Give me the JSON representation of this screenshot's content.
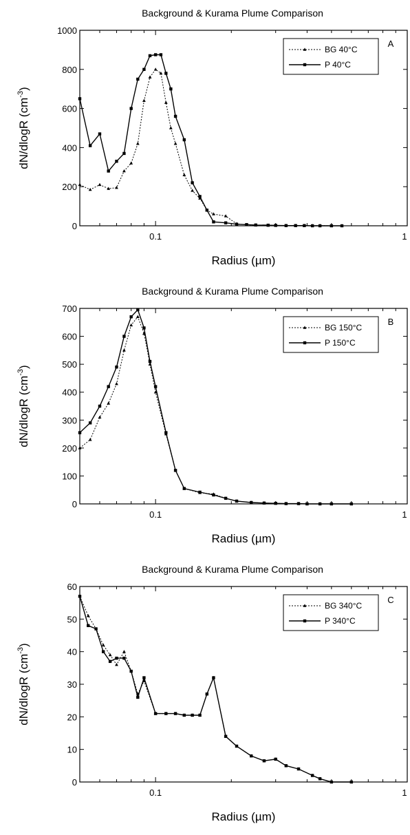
{
  "chart_data": [
    {
      "type": "line",
      "panel": "A",
      "title": "Background & Kurama Plume Comparison",
      "xlabel": "Radius (µm)",
      "ylabel": "dN/dlogR (cm-3)",
      "ylabel_main": "dN/dlogR (cm",
      "ylabel_sup": "-3",
      "ylabel_close": ")",
      "xscale": "log",
      "xlim": [
        0.05,
        1
      ],
      "ylim": [
        0,
        1000
      ],
      "xticks": [
        0.1,
        1
      ],
      "xtick_labels": [
        "0.1",
        "1"
      ],
      "yticks": [
        0,
        200,
        400,
        600,
        800,
        1000
      ],
      "ytick_labels": [
        "0",
        "200",
        "400",
        "600",
        "800",
        "1000"
      ],
      "legend_position": "top-right",
      "series": [
        {
          "name": "BG 40°C",
          "style": "dotted",
          "marker": "triangle",
          "x": [
            0.05,
            0.055,
            0.06,
            0.065,
            0.07,
            0.075,
            0.08,
            0.085,
            0.09,
            0.095,
            0.1,
            0.105,
            0.11,
            0.115,
            0.12,
            0.13,
            0.14,
            0.15,
            0.16,
            0.17,
            0.19,
            0.21,
            0.23,
            0.25,
            0.28,
            0.3,
            0.33,
            0.36,
            0.39,
            0.42,
            0.45,
            0.5,
            0.55
          ],
          "y": [
            210,
            185,
            210,
            190,
            195,
            280,
            320,
            420,
            640,
            760,
            800,
            780,
            630,
            500,
            420,
            260,
            180,
            140,
            80,
            60,
            50,
            10,
            5,
            3,
            2,
            2,
            1,
            1,
            1,
            1,
            1,
            0,
            0
          ]
        },
        {
          "name": "P 40°C",
          "style": "solid",
          "marker": "square",
          "x": [
            0.05,
            0.055,
            0.06,
            0.065,
            0.07,
            0.075,
            0.08,
            0.085,
            0.09,
            0.095,
            0.1,
            0.105,
            0.11,
            0.115,
            0.12,
            0.13,
            0.14,
            0.15,
            0.16,
            0.17,
            0.19,
            0.21,
            0.23,
            0.25,
            0.28,
            0.3,
            0.33,
            0.36,
            0.39,
            0.42,
            0.45,
            0.5,
            0.55
          ],
          "y": [
            650,
            410,
            470,
            280,
            330,
            370,
            600,
            750,
            800,
            870,
            875,
            875,
            780,
            700,
            560,
            440,
            220,
            150,
            80,
            20,
            15,
            8,
            6,
            4,
            3,
            2,
            1,
            1,
            1,
            0,
            0,
            0,
            0
          ]
        }
      ]
    },
    {
      "type": "line",
      "panel": "B",
      "title": "Background & Kurama Plume Comparison",
      "xlabel": "Radius (µm)",
      "ylabel": "dN/dlogR (cm-3)",
      "ylabel_main": "dN/dlogR (cm",
      "ylabel_sup": "-3",
      "ylabel_close": ")",
      "xscale": "log",
      "xlim": [
        0.05,
        1
      ],
      "ylim": [
        0,
        700
      ],
      "xticks": [
        0.1,
        1
      ],
      "xtick_labels": [
        "0.1",
        "1"
      ],
      "yticks": [
        0,
        100,
        200,
        300,
        400,
        500,
        600,
        700
      ],
      "ytick_labels": [
        "0",
        "100",
        "200",
        "300",
        "400",
        "500",
        "600",
        "700"
      ],
      "legend_position": "top-right",
      "series": [
        {
          "name": "BG 150°C",
          "style": "dotted",
          "marker": "triangle",
          "x": [
            0.05,
            0.055,
            0.06,
            0.065,
            0.07,
            0.075,
            0.08,
            0.085,
            0.09,
            0.095,
            0.1,
            0.11,
            0.12,
            0.13,
            0.15,
            0.17,
            0.19,
            0.21,
            0.24,
            0.27,
            0.3,
            0.33,
            0.37,
            0.4,
            0.45,
            0.5,
            0.6
          ],
          "y": [
            200,
            230,
            310,
            360,
            430,
            550,
            640,
            670,
            610,
            500,
            400,
            250,
            120,
            55,
            40,
            35,
            20,
            10,
            5,
            3,
            2,
            1,
            1,
            0,
            0,
            0,
            0
          ]
        },
        {
          "name": "P 150°C",
          "style": "solid",
          "marker": "square",
          "x": [
            0.05,
            0.055,
            0.06,
            0.065,
            0.07,
            0.075,
            0.08,
            0.085,
            0.09,
            0.095,
            0.1,
            0.11,
            0.12,
            0.13,
            0.15,
            0.17,
            0.19,
            0.21,
            0.24,
            0.27,
            0.3,
            0.33,
            0.37,
            0.4,
            0.45,
            0.5,
            0.6
          ],
          "y": [
            255,
            290,
            350,
            420,
            490,
            600,
            670,
            695,
            630,
            510,
            420,
            255,
            120,
            55,
            42,
            32,
            20,
            10,
            5,
            3,
            2,
            1,
            1,
            0,
            0,
            0,
            0
          ]
        }
      ]
    },
    {
      "type": "line",
      "panel": "C",
      "title": "Background & Kurama Plume Comparison",
      "xlabel": "Radius (µm)",
      "ylabel": "dN/dlogR (cm-3)",
      "ylabel_main": "dN/dlogR (cm",
      "ylabel_sup": "-3",
      "ylabel_close": ")",
      "xscale": "log",
      "xlim": [
        0.05,
        1
      ],
      "ylim": [
        0,
        60
      ],
      "xticks": [
        0.1,
        1
      ],
      "xtick_labels": [
        "0.1",
        "1"
      ],
      "yticks": [
        0,
        10,
        20,
        30,
        40,
        50,
        60
      ],
      "ytick_labels": [
        "0",
        "10",
        "20",
        "30",
        "40",
        "50",
        "60"
      ],
      "legend_position": "top-right",
      "series": [
        {
          "name": "BG 340°C",
          "style": "dotted",
          "marker": "triangle",
          "x": [
            0.05,
            0.054,
            0.058,
            0.062,
            0.066,
            0.07,
            0.075,
            0.08,
            0.085,
            0.09,
            0.1,
            0.11,
            0.12,
            0.13,
            0.14,
            0.15,
            0.16,
            0.17,
            0.19,
            0.21,
            0.24,
            0.27,
            0.3,
            0.33,
            0.37,
            0.42,
            0.45,
            0.5,
            0.6
          ],
          "y": [
            57,
            51,
            47,
            42,
            39,
            36,
            40,
            34,
            27,
            31,
            21,
            21,
            21,
            20.5,
            20.5,
            20.5,
            27,
            32,
            14,
            11,
            8,
            6.5,
            7,
            5,
            4,
            2,
            1,
            0,
            0
          ]
        },
        {
          "name": "P 340°C",
          "style": "solid",
          "marker": "square",
          "x": [
            0.05,
            0.054,
            0.058,
            0.062,
            0.066,
            0.07,
            0.075,
            0.08,
            0.085,
            0.09,
            0.1,
            0.11,
            0.12,
            0.13,
            0.14,
            0.15,
            0.16,
            0.17,
            0.19,
            0.21,
            0.24,
            0.27,
            0.3,
            0.33,
            0.37,
            0.42,
            0.45,
            0.5,
            0.6
          ],
          "y": [
            57,
            48,
            47,
            40,
            37,
            38,
            38,
            34,
            26,
            32,
            21,
            21,
            21,
            20.5,
            20.5,
            20.5,
            27,
            32,
            14,
            11,
            8,
            6.5,
            7,
            5,
            4,
            2,
            1,
            0,
            0
          ]
        }
      ]
    }
  ]
}
